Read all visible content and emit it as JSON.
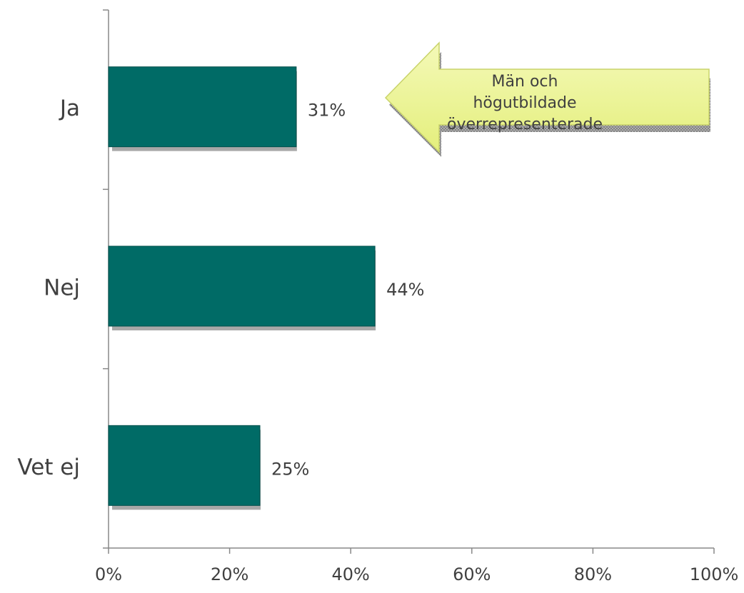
{
  "chart_data": {
    "type": "bar",
    "orientation": "horizontal",
    "categories": [
      "Ja",
      "Nej",
      "Vet ej"
    ],
    "values": [
      31,
      44,
      25
    ],
    "value_labels": [
      "31%",
      "44%",
      "25%"
    ],
    "color": "#006b66",
    "xlim": [
      0,
      100
    ],
    "xticks": [
      {
        "value": 0,
        "label": "0%"
      },
      {
        "value": 20,
        "label": "20%"
      },
      {
        "value": 40,
        "label": "40%"
      },
      {
        "value": 60,
        "label": "60%"
      },
      {
        "value": 80,
        "label": "80%"
      },
      {
        "value": 100,
        "label": "100%"
      }
    ],
    "annotation": "Män och högutbildade överrepresenterade"
  }
}
